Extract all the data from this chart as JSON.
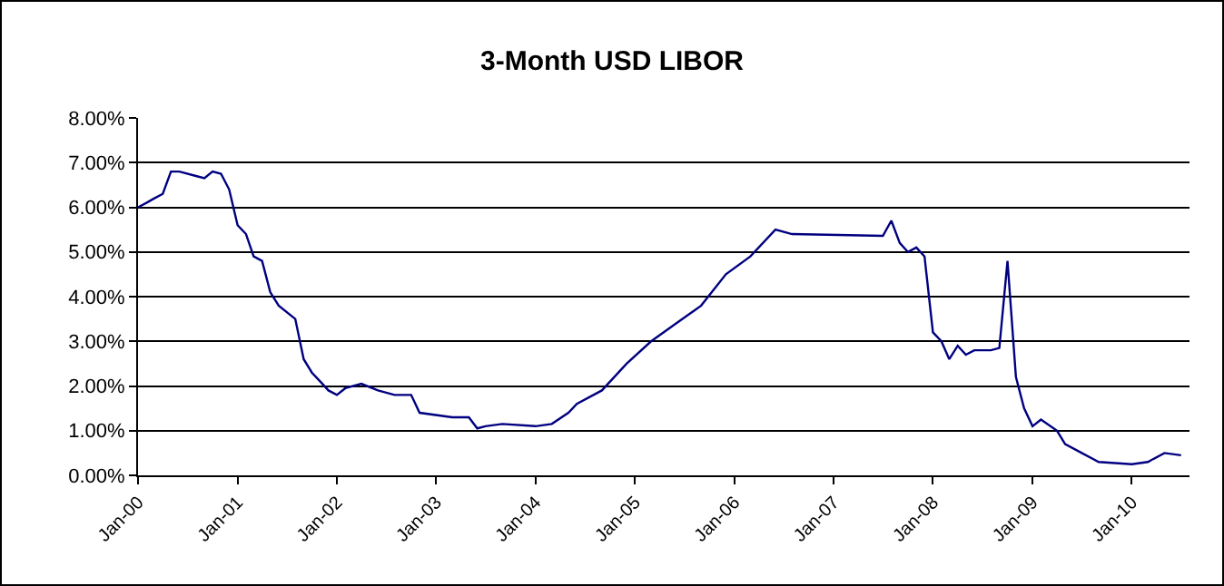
{
  "chart_data": {
    "type": "line",
    "title": "3-Month USD LIBOR",
    "x": [
      "2000-01-01",
      "2000-02-01",
      "2000-03-01",
      "2000-04-01",
      "2000-05-01",
      "2000-06-01",
      "2000-08-01",
      "2000-09-01",
      "2000-10-01",
      "2000-11-01",
      "2000-12-01",
      "2001-01-01",
      "2001-02-01",
      "2001-03-01",
      "2001-04-01",
      "2001-05-01",
      "2001-06-01",
      "2001-08-01",
      "2001-09-01",
      "2001-10-01",
      "2001-11-01",
      "2001-12-01",
      "2002-01-01",
      "2002-02-01",
      "2002-04-01",
      "2002-06-01",
      "2002-08-01",
      "2002-10-01",
      "2002-11-01",
      "2003-03-01",
      "2003-05-01",
      "2003-06-01",
      "2003-07-01",
      "2003-09-01",
      "2004-01-01",
      "2004-03-01",
      "2004-05-01",
      "2004-06-01",
      "2004-09-01",
      "2004-12-01",
      "2005-03-01",
      "2005-06-01",
      "2005-09-01",
      "2005-12-01",
      "2006-03-01",
      "2006-06-01",
      "2006-08-01",
      "2007-07-01",
      "2007-08-01",
      "2007-09-01",
      "2007-10-01",
      "2007-11-01",
      "2007-12-01",
      "2008-01-01",
      "2008-02-01",
      "2008-03-01",
      "2008-04-01",
      "2008-05-01",
      "2008-06-01",
      "2008-08-01",
      "2008-09-01",
      "2008-10-01",
      "2008-11-01",
      "2008-12-01",
      "2009-01-01",
      "2009-02-01",
      "2009-04-01",
      "2009-05-01",
      "2009-07-01",
      "2009-09-01",
      "2010-01-01",
      "2010-03-01",
      "2010-05-01",
      "2010-07-01"
    ],
    "series": [
      {
        "color": "#000080",
        "values": [
          6.0,
          6.1,
          6.2,
          6.3,
          6.8,
          6.8,
          6.7,
          6.65,
          6.8,
          6.75,
          6.4,
          5.6,
          5.4,
          4.9,
          4.8,
          4.1,
          3.8,
          3.5,
          2.6,
          2.3,
          2.1,
          1.9,
          1.8,
          1.95,
          2.05,
          1.9,
          1.8,
          1.8,
          1.4,
          1.3,
          1.3,
          1.05,
          1.1,
          1.15,
          1.1,
          1.15,
          1.4,
          1.6,
          1.9,
          2.5,
          3.0,
          3.4,
          3.8,
          4.5,
          4.9,
          5.5,
          5.4,
          5.36,
          5.7,
          5.2,
          5.0,
          5.1,
          4.9,
          3.2,
          3.0,
          2.6,
          2.9,
          2.7,
          2.8,
          2.8,
          2.85,
          4.8,
          2.2,
          1.5,
          1.1,
          1.25,
          1.0,
          0.7,
          0.5,
          0.3,
          0.25,
          0.3,
          0.5,
          0.45
        ]
      }
    ],
    "xlim": [
      "2000-01-01",
      "2010-08-01"
    ],
    "xticks": [
      {
        "value": "2000-01-01",
        "label": "Jan-00"
      },
      {
        "value": "2001-01-01",
        "label": "Jan-01"
      },
      {
        "value": "2002-01-01",
        "label": "Jan-02"
      },
      {
        "value": "2003-01-01",
        "label": "Jan-03"
      },
      {
        "value": "2004-01-01",
        "label": "Jan-04"
      },
      {
        "value": "2005-01-01",
        "label": "Jan-05"
      },
      {
        "value": "2006-01-01",
        "label": "Jan-06"
      },
      {
        "value": "2007-01-01",
        "label": "Jan-07"
      },
      {
        "value": "2008-01-01",
        "label": "Jan-08"
      },
      {
        "value": "2009-01-01",
        "label": "Jan-09"
      },
      {
        "value": "2010-01-01",
        "label": "Jan-10"
      }
    ],
    "ylim": [
      0,
      8
    ],
    "yticks": [
      {
        "value": 0,
        "label": "0.00%"
      },
      {
        "value": 1,
        "label": "1.00%"
      },
      {
        "value": 2,
        "label": "2.00%"
      },
      {
        "value": 3,
        "label": "3.00%"
      },
      {
        "value": 4,
        "label": "4.00%"
      },
      {
        "value": 5,
        "label": "5.00%"
      },
      {
        "value": 6,
        "label": "6.00%"
      },
      {
        "value": 7,
        "label": "7.00%"
      },
      {
        "value": 8,
        "label": "8.00%"
      }
    ],
    "grid": "y",
    "legend": false,
    "marker": "none",
    "line_style": "solid"
  }
}
